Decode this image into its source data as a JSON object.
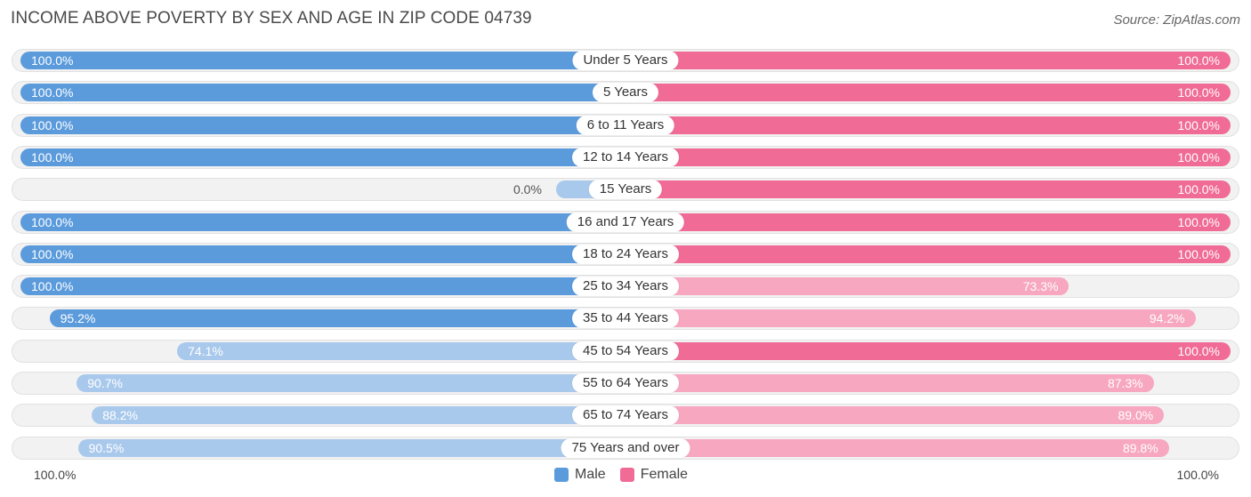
{
  "chart_data": {
    "type": "bar",
    "orientation": "horizontal-diverging",
    "title": "INCOME ABOVE POVERTY BY SEX AND AGE IN ZIP CODE 04739",
    "source": "Source: ZipAtlas.com",
    "categories": [
      "Under 5 Years",
      "5 Years",
      "6 to 11 Years",
      "12 to 14 Years",
      "15 Years",
      "16 and 17 Years",
      "18 to 24 Years",
      "25 to 34 Years",
      "35 to 44 Years",
      "45 to 54 Years",
      "55 to 64 Years",
      "65 to 74 Years",
      "75 Years and over"
    ],
    "series": [
      {
        "name": "Male",
        "values": [
          100.0,
          100.0,
          100.0,
          100.0,
          0.0,
          100.0,
          100.0,
          100.0,
          95.2,
          74.1,
          90.7,
          88.2,
          90.5
        ],
        "labels": [
          "100.0%",
          "100.0%",
          "100.0%",
          "100.0%",
          "0.0%",
          "100.0%",
          "100.0%",
          "100.0%",
          "95.2%",
          "74.1%",
          "90.7%",
          "88.2%",
          "90.5%"
        ]
      },
      {
        "name": "Female",
        "values": [
          100.0,
          100.0,
          100.0,
          100.0,
          100.0,
          100.0,
          100.0,
          73.3,
          94.2,
          100.0,
          87.3,
          89.0,
          89.8
        ],
        "labels": [
          "100.0%",
          "100.0%",
          "100.0%",
          "100.0%",
          "100.0%",
          "100.0%",
          "100.0%",
          "73.3%",
          "94.2%",
          "100.0%",
          "87.3%",
          "89.0%",
          "89.8%"
        ]
      }
    ],
    "xlim": [
      0,
      100
    ],
    "axis_left_label": "100.0%",
    "axis_right_label": "100.0%",
    "legend_position": "bottom-center",
    "colors": {
      "male_strong": "#5b9bdc",
      "male_light": "#a9c9ec",
      "female_strong": "#f06b96",
      "female_light": "#f7a7c0"
    }
  }
}
